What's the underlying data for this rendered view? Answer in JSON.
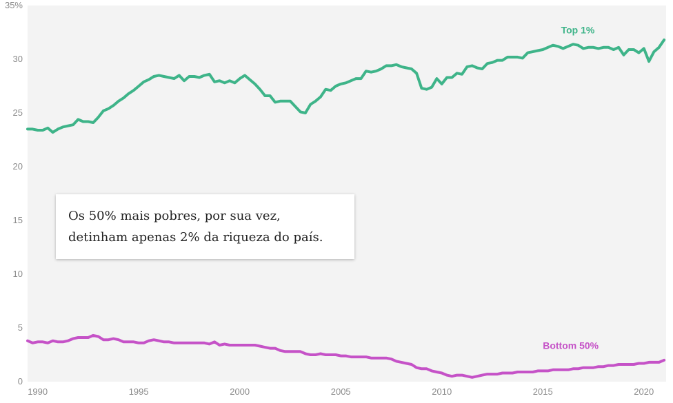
{
  "chart_data": {
    "type": "line",
    "ylim": [
      0,
      35
    ],
    "xlim": [
      1989.5,
      2021.1
    ],
    "grid": false,
    "y_ticks": [
      0,
      5,
      10,
      15,
      20,
      25,
      30,
      35
    ],
    "y_tick_labels": [
      "0",
      "5",
      "10",
      "15",
      "20",
      "25",
      "30",
      "35%"
    ],
    "x_ticks": [
      1990,
      1995,
      2000,
      2005,
      2010,
      2015,
      2020
    ],
    "x_tick_labels": [
      "1990",
      "1995",
      "2000",
      "2005",
      "2010",
      "2015",
      "2020"
    ],
    "annotation": "Os 50% mais pobres, por sua vez, detinham apenas 2% da riqueza do país.",
    "series": [
      {
        "name": "Top 1%",
        "color": "#3eb489",
        "label_at": [
          2015.9,
          32.4
        ],
        "x": [
          1989.5,
          1989.75,
          1990.0,
          1990.25,
          1990.5,
          1990.75,
          1991.0,
          1991.25,
          1991.5,
          1991.75,
          1992.0,
          1992.25,
          1992.5,
          1992.75,
          1993.0,
          1993.25,
          1993.5,
          1993.75,
          1994.0,
          1994.25,
          1994.5,
          1994.75,
          1995.0,
          1995.25,
          1995.5,
          1995.75,
          1996.0,
          1996.25,
          1996.5,
          1996.75,
          1997.0,
          1997.25,
          1997.5,
          1997.75,
          1998.0,
          1998.25,
          1998.5,
          1998.75,
          1999.0,
          1999.25,
          1999.5,
          1999.75,
          2000.0,
          2000.25,
          2000.5,
          2000.75,
          2001.0,
          2001.25,
          2001.5,
          2001.75,
          2002.0,
          2002.25,
          2002.5,
          2002.75,
          2003.0,
          2003.25,
          2003.5,
          2003.75,
          2004.0,
          2004.25,
          2004.5,
          2004.75,
          2005.0,
          2005.25,
          2005.5,
          2005.75,
          2006.0,
          2006.25,
          2006.5,
          2006.75,
          2007.0,
          2007.25,
          2007.5,
          2007.75,
          2008.0,
          2008.25,
          2008.5,
          2008.75,
          2009.0,
          2009.25,
          2009.5,
          2009.75,
          2010.0,
          2010.25,
          2010.5,
          2010.75,
          2011.0,
          2011.25,
          2011.5,
          2011.75,
          2012.0,
          2012.25,
          2012.5,
          2012.75,
          2013.0,
          2013.25,
          2013.5,
          2013.75,
          2014.0,
          2014.25,
          2014.5,
          2014.75,
          2015.0,
          2015.25,
          2015.5,
          2015.75,
          2016.0,
          2016.25,
          2016.5,
          2016.75,
          2017.0,
          2017.25,
          2017.5,
          2017.75,
          2018.0,
          2018.25,
          2018.5,
          2018.75,
          2019.0,
          2019.25,
          2019.5,
          2019.75,
          2020.0,
          2020.25,
          2020.5,
          2020.75,
          2021.0
        ],
        "values": [
          23.5,
          23.5,
          23.4,
          23.4,
          23.6,
          23.2,
          23.5,
          23.7,
          23.8,
          23.9,
          24.4,
          24.2,
          24.2,
          24.1,
          24.6,
          25.2,
          25.4,
          25.7,
          26.1,
          26.4,
          26.8,
          27.1,
          27.5,
          27.9,
          28.1,
          28.4,
          28.5,
          28.4,
          28.3,
          28.2,
          28.5,
          28.0,
          28.4,
          28.4,
          28.3,
          28.5,
          28.6,
          27.9,
          28.0,
          27.8,
          28.0,
          27.8,
          28.2,
          28.5,
          28.1,
          27.7,
          27.2,
          26.6,
          26.6,
          26.0,
          26.1,
          26.1,
          26.1,
          25.6,
          25.1,
          25.0,
          25.8,
          26.1,
          26.5,
          27.2,
          27.1,
          27.5,
          27.7,
          27.8,
          28.0,
          28.2,
          28.2,
          28.9,
          28.8,
          28.9,
          29.1,
          29.4,
          29.4,
          29.5,
          29.3,
          29.2,
          29.1,
          28.7,
          27.3,
          27.2,
          27.4,
          28.2,
          27.7,
          28.3,
          28.3,
          28.7,
          28.6,
          29.3,
          29.4,
          29.2,
          29.1,
          29.6,
          29.7,
          29.9,
          29.9,
          30.2,
          30.2,
          30.2,
          30.1,
          30.6,
          30.7,
          30.8,
          30.9,
          31.1,
          31.3,
          31.2,
          31.0,
          31.2,
          31.4,
          31.3,
          31.0,
          31.1,
          31.1,
          31.0,
          31.1,
          31.1,
          30.9,
          31.1,
          30.4,
          30.9,
          30.9,
          30.6,
          31.0,
          29.8,
          30.7,
          31.1,
          31.8
        ]
      },
      {
        "name": "Bottom 50%",
        "color": "#c552c7",
        "label_at": [
          2015.0,
          3.05
        ],
        "x": [
          1989.5,
          1989.75,
          1990.0,
          1990.25,
          1990.5,
          1990.75,
          1991.0,
          1991.25,
          1991.5,
          1991.75,
          1992.0,
          1992.25,
          1992.5,
          1992.75,
          1993.0,
          1993.25,
          1993.5,
          1993.75,
          1994.0,
          1994.25,
          1994.5,
          1994.75,
          1995.0,
          1995.25,
          1995.5,
          1995.75,
          1996.0,
          1996.25,
          1996.5,
          1996.75,
          1997.0,
          1997.25,
          1997.5,
          1997.75,
          1998.0,
          1998.25,
          1998.5,
          1998.75,
          1999.0,
          1999.25,
          1999.5,
          1999.75,
          2000.0,
          2000.25,
          2000.5,
          2000.75,
          2001.0,
          2001.25,
          2001.5,
          2001.75,
          2002.0,
          2002.25,
          2002.5,
          2002.75,
          2003.0,
          2003.25,
          2003.5,
          2003.75,
          2004.0,
          2004.25,
          2004.5,
          2004.75,
          2005.0,
          2005.25,
          2005.5,
          2005.75,
          2006.0,
          2006.25,
          2006.5,
          2006.75,
          2007.0,
          2007.25,
          2007.5,
          2007.75,
          2008.0,
          2008.25,
          2008.5,
          2008.75,
          2009.0,
          2009.25,
          2009.5,
          2009.75,
          2010.0,
          2010.25,
          2010.5,
          2010.75,
          2011.0,
          2011.25,
          2011.5,
          2011.75,
          2012.0,
          2012.25,
          2012.5,
          2012.75,
          2013.0,
          2013.25,
          2013.5,
          2013.75,
          2014.0,
          2014.25,
          2014.5,
          2014.75,
          2015.0,
          2015.25,
          2015.5,
          2015.75,
          2016.0,
          2016.25,
          2016.5,
          2016.75,
          2017.0,
          2017.25,
          2017.5,
          2017.75,
          2018.0,
          2018.25,
          2018.5,
          2018.75,
          2019.0,
          2019.25,
          2019.5,
          2019.75,
          2020.0,
          2020.25,
          2020.5,
          2020.75,
          2021.0
        ],
        "values": [
          3.8,
          3.6,
          3.7,
          3.7,
          3.6,
          3.8,
          3.7,
          3.7,
          3.8,
          4.0,
          4.1,
          4.1,
          4.1,
          4.3,
          4.2,
          3.9,
          3.9,
          4.0,
          3.9,
          3.7,
          3.7,
          3.7,
          3.6,
          3.6,
          3.8,
          3.9,
          3.8,
          3.7,
          3.7,
          3.6,
          3.6,
          3.6,
          3.6,
          3.6,
          3.6,
          3.6,
          3.5,
          3.7,
          3.4,
          3.5,
          3.4,
          3.4,
          3.4,
          3.4,
          3.4,
          3.4,
          3.3,
          3.2,
          3.1,
          3.1,
          2.9,
          2.8,
          2.8,
          2.8,
          2.8,
          2.6,
          2.5,
          2.5,
          2.6,
          2.5,
          2.5,
          2.5,
          2.4,
          2.4,
          2.3,
          2.3,
          2.3,
          2.3,
          2.2,
          2.2,
          2.2,
          2.2,
          2.1,
          1.9,
          1.8,
          1.7,
          1.6,
          1.3,
          1.2,
          1.2,
          1.0,
          0.9,
          0.8,
          0.6,
          0.5,
          0.6,
          0.6,
          0.5,
          0.4,
          0.5,
          0.6,
          0.7,
          0.7,
          0.7,
          0.8,
          0.8,
          0.8,
          0.9,
          0.9,
          0.9,
          0.9,
          1.0,
          1.0,
          1.0,
          1.1,
          1.1,
          1.1,
          1.1,
          1.2,
          1.2,
          1.3,
          1.3,
          1.3,
          1.4,
          1.4,
          1.5,
          1.5,
          1.6,
          1.6,
          1.6,
          1.6,
          1.7,
          1.7,
          1.8,
          1.8,
          1.8,
          2.0
        ]
      }
    ]
  }
}
